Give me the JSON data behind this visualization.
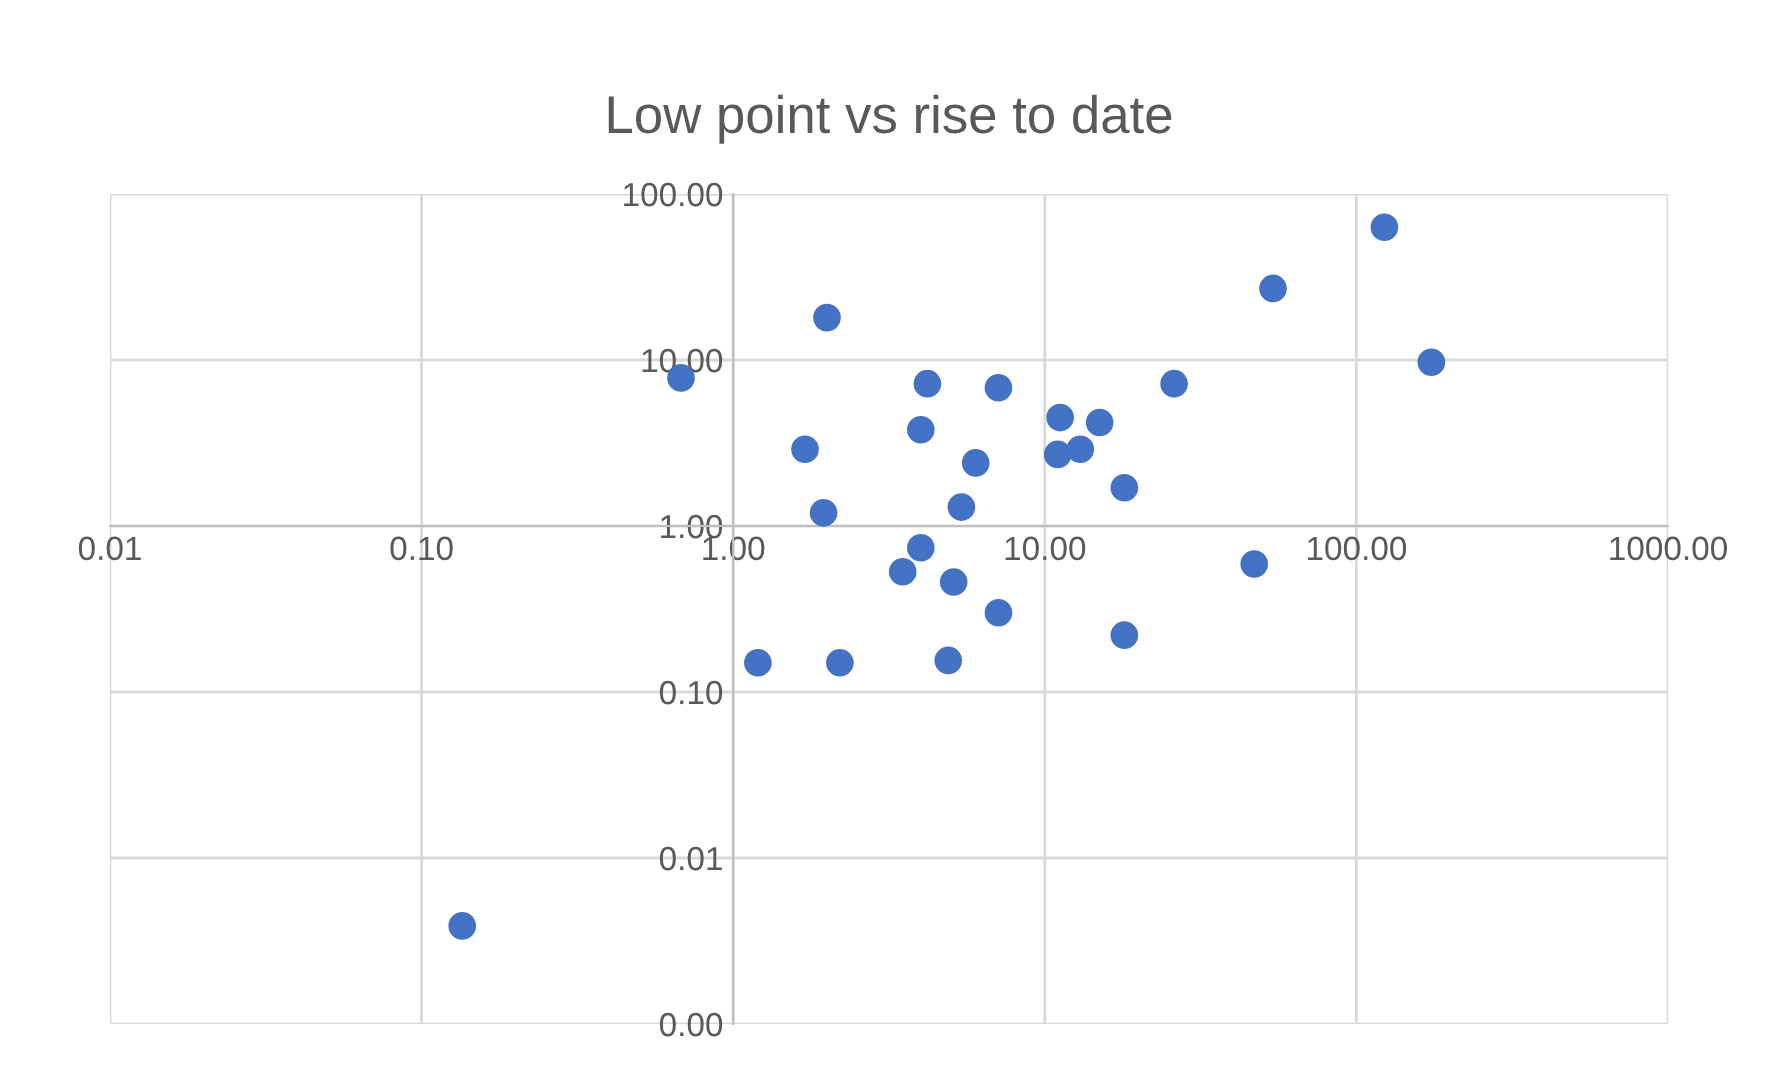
{
  "chart_data": {
    "type": "scatter",
    "title": "Low point vs rise to date",
    "log": "xy",
    "grid": true,
    "marker": "circle",
    "x": [
      123,
      174,
      54,
      26,
      47,
      18,
      18,
      15,
      13,
      11.2,
      11,
      7.1,
      7.1,
      6.0,
      5.4,
      5.1,
      4.9,
      4.2,
      4.0,
      4.0,
      3.5,
      2.0,
      1.95,
      1.7,
      2.2,
      1.2,
      0.68,
      0.135
    ],
    "series": [
      {
        "color": "#4472c4",
        "values": [
          63,
          9.7,
          27,
          7.2,
          0.59,
          1.7,
          0.22,
          4.2,
          2.9,
          4.5,
          2.7,
          6.8,
          0.3,
          2.4,
          1.3,
          0.46,
          0.155,
          7.2,
          3.8,
          0.74,
          0.53,
          18,
          1.2,
          2.9,
          0.15,
          0.15,
          7.8,
          0.0039
        ]
      }
    ],
    "xlim": [
      0.01,
      1000
    ],
    "ylim": [
      0.001,
      100
    ],
    "xticks": [
      {
        "value": 0.01,
        "label": "0.01"
      },
      {
        "value": 0.1,
        "label": "0.10"
      },
      {
        "value": 1,
        "label": "1.00"
      },
      {
        "value": 10,
        "label": "10.00"
      },
      {
        "value": 100,
        "label": "100.00"
      },
      {
        "value": 1000,
        "label": "1000.00"
      }
    ],
    "yticks": [
      {
        "value": 0.001,
        "label": "0.00"
      },
      {
        "value": 0.01,
        "label": "0.01"
      },
      {
        "value": 0.1,
        "label": "0.10"
      },
      {
        "value": 1,
        "label": "1.00"
      },
      {
        "value": 10,
        "label": "10.00"
      },
      {
        "value": 100,
        "label": "100.00"
      }
    ]
  }
}
